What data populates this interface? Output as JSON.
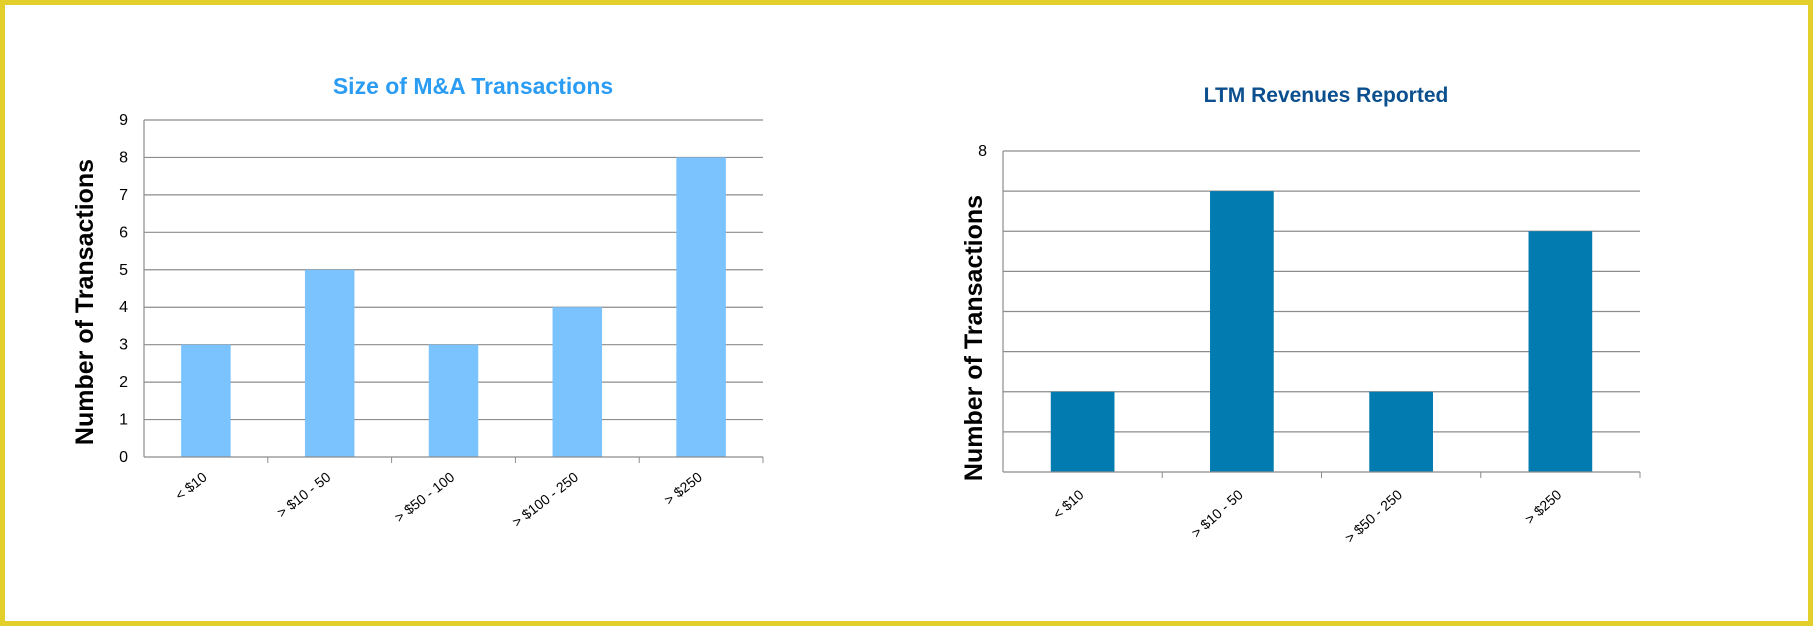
{
  "chart_data": [
    {
      "type": "bar",
      "title": "Size of M&A Transactions",
      "ylabel": "Number of Transactions",
      "xlabel": "",
      "categories": [
        "< $10",
        "> $10 - 50",
        "> $50 - 100",
        "> $100 - 250",
        "> $250"
      ],
      "values": [
        3,
        5,
        3,
        4,
        8
      ],
      "ylim": [
        0,
        9
      ],
      "yticks": [
        "0",
        "1",
        "2",
        "3",
        "4",
        "5",
        "6",
        "7",
        "8",
        "9"
      ],
      "grid": true,
      "colors": {
        "bar": "#7ac3fe",
        "title": "#2a9cf3"
      }
    },
    {
      "type": "bar",
      "title": "LTM Revenues Reported",
      "ylabel": "Number of Transactions",
      "xlabel": "",
      "categories": [
        "< $10",
        "> $10 - 50",
        "> $50 - 250",
        "> $250"
      ],
      "values": [
        2,
        7,
        2,
        6
      ],
      "ylim": [
        0,
        8
      ],
      "yticks": [
        "8"
      ],
      "grid": true,
      "colors": {
        "bar": "#017bb0",
        "title": "#0b4f8e"
      }
    }
  ]
}
